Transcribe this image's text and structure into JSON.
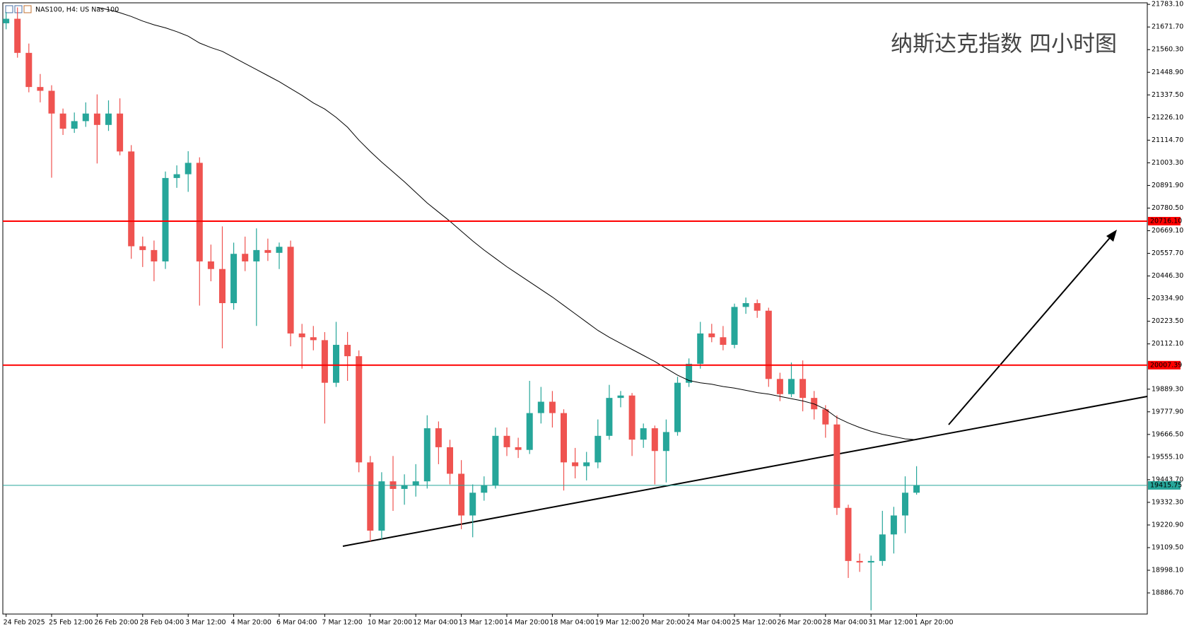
{
  "chart_data": {
    "type": "candlestick",
    "title": "NAS100, H4:  US Nas 100",
    "annotation": "纳斯达克指数 四小时图",
    "up_color": "#26a69a",
    "down_color": "#ef5350",
    "ma_color": "#000000",
    "ylim": [
      18782.6,
      21790.6
    ],
    "yticks": [
      {
        "value": 21783.1,
        "label": "21783.10"
      },
      {
        "value": 21671.7,
        "label": "21671.70"
      },
      {
        "value": 21560.3,
        "label": "21560.30"
      },
      {
        "value": 21448.9,
        "label": "21448.90"
      },
      {
        "value": 21337.5,
        "label": "21337.50"
      },
      {
        "value": 21226.1,
        "label": "21226.10"
      },
      {
        "value": 21114.7,
        "label": "21114.70"
      },
      {
        "value": 21003.3,
        "label": "21003.30"
      },
      {
        "value": 20891.9,
        "label": "20891.90"
      },
      {
        "value": 20780.5,
        "label": "20780.50"
      },
      {
        "value": 20669.1,
        "label": "20669.10"
      },
      {
        "value": 20557.7,
        "label": "20557.70"
      },
      {
        "value": 20446.3,
        "label": "20446.30"
      },
      {
        "value": 20334.9,
        "label": "20334.90"
      },
      {
        "value": 20223.5,
        "label": "20223.50"
      },
      {
        "value": 20112.1,
        "label": "20112.10"
      },
      {
        "value": 19889.3,
        "label": "19889.30"
      },
      {
        "value": 19777.9,
        "label": "19777.90"
      },
      {
        "value": 19666.5,
        "label": "19666.50"
      },
      {
        "value": 19555.1,
        "label": "19555.10"
      },
      {
        "value": 19443.7,
        "label": "19443.70"
      },
      {
        "value": 19332.3,
        "label": "19332.30"
      },
      {
        "value": 19220.9,
        "label": "19220.90"
      },
      {
        "value": 19109.5,
        "label": "19109.50"
      },
      {
        "value": 18998.1,
        "label": "18998.10"
      },
      {
        "value": 18886.7,
        "label": "18886.70"
      }
    ],
    "hlines": [
      {
        "value": 20716.1,
        "label": "20716.10",
        "color": "#ff0000"
      },
      {
        "value": 20007.39,
        "color": "#ff0000"
      },
      {
        "value": 19415.75,
        "color": "#26a69a"
      }
    ],
    "categories": [
      "24 Feb 2025",
      null,
      null,
      null,
      "25 Feb 12:00",
      null,
      null,
      null,
      "26 Feb 20:00",
      null,
      null,
      null,
      "28 Feb 04:00",
      null,
      null,
      null,
      "3 Mar 12:00",
      null,
      null,
      null,
      "4 Mar 20:00",
      null,
      null,
      null,
      "6 Mar 04:00",
      null,
      null,
      null,
      "7 Mar 12:00",
      null,
      null,
      null,
      "10 Mar 20:00",
      null,
      null,
      null,
      "12 Mar 04:00",
      null,
      null,
      null,
      "13 Mar 12:00",
      null,
      null,
      null,
      "14 Mar 20:00",
      null,
      null,
      null,
      "18 Mar 04:00",
      null,
      null,
      null,
      "19 Mar 12:00",
      null,
      null,
      null,
      "20 Mar 20:00",
      null,
      null,
      null,
      "24 Mar 04:00",
      null,
      null,
      null,
      "25 Mar 12:00",
      null,
      null,
      null,
      "26 Mar 20:00",
      null,
      null,
      null,
      "28 Mar 04:00",
      null,
      null,
      null,
      "31 Mar 12:00",
      null,
      null,
      null,
      "1 Apr 20:00"
    ],
    "ohlc": [
      [
        21690.0,
        21745.3,
        21660.4,
        21712.2
      ],
      [
        21712.2,
        21768.0,
        21520.6,
        21544.3
      ],
      [
        21544.3,
        21590.1,
        21350.2,
        21376.3
      ],
      [
        21376.3,
        21440.5,
        21300.8,
        21357.7
      ],
      [
        21357.7,
        21385.0,
        20930.0,
        21245.7
      ],
      [
        21245.7,
        21270.2,
        21140.3,
        21171.1
      ],
      [
        21171.1,
        21250.8,
        21150.4,
        21208.4
      ],
      [
        21208.4,
        21300.6,
        21180.2,
        21245.7
      ],
      [
        21245.7,
        21340.0,
        21000.0,
        21189.7
      ],
      [
        21189.7,
        21310.5,
        21160.3,
        21245.7
      ],
      [
        21245.7,
        21320.4,
        21040.2,
        21059.1
      ],
      [
        21059.1,
        21090.3,
        20530.8,
        20592.6
      ],
      [
        20592.6,
        20640.1,
        20490.5,
        20573.9
      ],
      [
        20573.9,
        20620.7,
        20420.3,
        20518.0
      ],
      [
        20518.0,
        20960.2,
        20480.9,
        20928.5
      ],
      [
        20928.5,
        20990.6,
        20880.1,
        20947.1
      ],
      [
        20947.1,
        21060.3,
        20860.4,
        21003.1
      ],
      [
        21003.1,
        21030.2,
        20300.6,
        20518.0
      ],
      [
        20518.0,
        20600.7,
        20420.2,
        20480.6
      ],
      [
        20480.6,
        20690.3,
        20090.1,
        20312.7
      ],
      [
        20312.7,
        20610.4,
        20280.5,
        20555.3
      ],
      [
        20555.3,
        20640.0,
        20470.2,
        20518.0
      ],
      [
        20518.0,
        20680.5,
        20200.4,
        20573.9
      ],
      [
        20573.9,
        20630.2,
        20520.3,
        20560.2
      ],
      [
        20560.2,
        20610.8,
        20480.5,
        20590.0
      ],
      [
        20590.0,
        20620.4,
        20100.3,
        20163.4
      ],
      [
        20163.4,
        20210.6,
        19990.2,
        20144.8
      ],
      [
        20144.8,
        20200.3,
        20080.5,
        20130.5
      ],
      [
        20130.5,
        20170.2,
        19720.4,
        19920.8
      ],
      [
        19920.8,
        20220.6,
        19900.3,
        20107.4
      ],
      [
        20107.4,
        20170.8,
        19930.2,
        20051.5
      ],
      [
        20051.5,
        20080.1,
        19480.2,
        19529.0
      ],
      [
        19529.0,
        19560.3,
        19140.6,
        19193.1
      ],
      [
        19193.1,
        19480.5,
        19150.2,
        19435.7
      ],
      [
        19435.7,
        19560.4,
        19290.3,
        19398.4
      ],
      [
        19398.4,
        19470.2,
        19320.6,
        19417.0
      ],
      [
        19417.0,
        19520.3,
        19360.5,
        19435.7
      ],
      [
        19435.7,
        19760.8,
        19400.2,
        19696.9
      ],
      [
        19696.9,
        19730.4,
        19520.1,
        19603.6
      ],
      [
        19603.6,
        19640.2,
        19420.5,
        19473.0
      ],
      [
        19473.0,
        19540.1,
        19200.3,
        19267.7
      ],
      [
        19267.7,
        19420.6,
        19160.4,
        19379.7
      ],
      [
        19379.7,
        19460.2,
        19340.5,
        19417.0
      ],
      [
        19417.0,
        19700.3,
        19400.1,
        19659.6
      ],
      [
        19659.6,
        19700.8,
        19560.3,
        19603.6
      ],
      [
        19603.6,
        19650.2,
        19550.6,
        19590.4
      ],
      [
        19590.4,
        19930.1,
        19570.2,
        19771.6
      ],
      [
        19771.6,
        19900.4,
        19720.3,
        19827.5
      ],
      [
        19827.5,
        19880.2,
        19700.6,
        19771.6
      ],
      [
        19771.6,
        19790.3,
        19390.5,
        19529.0
      ],
      [
        19529.0,
        19600.1,
        19450.3,
        19510.3
      ],
      [
        19510.3,
        19580.6,
        19440.2,
        19529.0
      ],
      [
        19529.0,
        19740.3,
        19500.1,
        19659.6
      ],
      [
        19659.6,
        19910.5,
        19640.2,
        19846.2
      ],
      [
        19846.2,
        19880.3,
        19800.1,
        19858.0
      ],
      [
        19858.0,
        19870.5,
        19560.4,
        19640.9
      ],
      [
        19640.9,
        19720.3,
        19600.5,
        19696.9
      ],
      [
        19696.9,
        19710.2,
        19420.6,
        19585.0
      ],
      [
        19585.0,
        19740.1,
        19430.3,
        19678.3
      ],
      [
        19678.3,
        19950.4,
        19660.2,
        19920.8
      ],
      [
        19920.8,
        20040.6,
        19900.3,
        20014.1
      ],
      [
        20014.1,
        20220.5,
        19990.2,
        20163.4
      ],
      [
        20163.4,
        20210.8,
        20120.3,
        20144.8
      ],
      [
        20144.8,
        20200.1,
        20080.6,
        20107.4
      ],
      [
        20107.4,
        20310.3,
        20090.5,
        20294.0
      ],
      [
        20294.0,
        20340.2,
        20260.1,
        20312.7
      ],
      [
        20312.7,
        20330.5,
        20240.3,
        20275.4
      ],
      [
        20275.4,
        20290.2,
        19900.6,
        19939.5
      ],
      [
        19939.5,
        19970.1,
        19830.3,
        19864.9
      ],
      [
        19864.9,
        20020.4,
        19850.2,
        19939.5
      ],
      [
        19939.5,
        20030.6,
        19780.2,
        19846.2
      ],
      [
        19846.2,
        19880.3,
        19740.1,
        19790.2
      ],
      [
        19790.2,
        19810.5,
        19650.3,
        19715.6
      ],
      [
        19715.6,
        19760.2,
        19270.4,
        19305.1
      ],
      [
        19305.1,
        19320.6,
        18960.2,
        19043.8
      ],
      [
        19043.8,
        19080.3,
        18990.1,
        19036.3
      ],
      [
        19036.3,
        19070.2,
        18801.0,
        19043.8
      ],
      [
        19043.8,
        19290.5,
        19020.3,
        19174.4
      ],
      [
        19174.4,
        19310.2,
        19080.6,
        19267.7
      ],
      [
        19267.7,
        19460.3,
        19180.4,
        19379.7
      ],
      [
        19379.7,
        19510.2,
        19370.3,
        19415.75
      ]
    ],
    "ma": [
      null,
      null,
      null,
      null,
      null,
      null,
      null,
      null,
      21768.2,
      21757.0,
      21742.0,
      21723.4,
      21701.0,
      21682.3,
      21667.4,
      21648.8,
      21626.4,
      21592.8,
      21570.4,
      21551.7,
      21521.9,
      21492.0,
      21462.2,
      21432.3,
      21402.4,
      21368.8,
      21335.3,
      21298.0,
      21268.1,
      21227.0,
      21178.5,
      21115.1,
      21059.1,
      21006.8,
      20958.3,
      20909.8,
      20857.6,
      20805.3,
      20760.5,
      20715.8,
      20667.2,
      20618.7,
      20574.0,
      20532.9,
      20491.8,
      20454.5,
      20417.2,
      20379.9,
      20342.5,
      20301.5,
      20260.4,
      20219.4,
      20178.3,
      20144.8,
      20114.9,
      20085.0,
      20055.2,
      20025.3,
      19991.7,
      19958.2,
      19932.0,
      19920.8,
      19913.4,
      19902.2,
      19894.7,
      19883.5,
      19872.3,
      19864.9,
      19853.7,
      19842.5,
      19831.3,
      19816.4,
      19790.2,
      19749.2,
      19723.0,
      19700.7,
      19682.0,
      19667.1,
      19655.9,
      19644.7,
      19640.9
    ]
  }
}
